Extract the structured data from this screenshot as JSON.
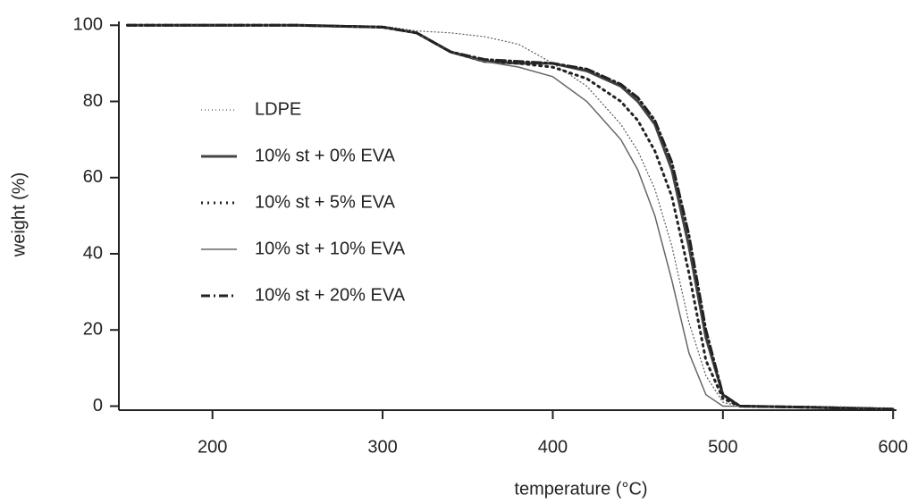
{
  "chart_data": {
    "type": "line",
    "x_label": "temperature (°C)",
    "y_label": "weight (%)",
    "x": [
      150,
      200,
      250,
      300,
      320,
      340,
      360,
      380,
      400,
      420,
      440,
      450,
      460,
      470,
      480,
      490,
      500,
      510,
      550,
      600
    ],
    "series": [
      {
        "name": "LDPE",
        "color": "#555555",
        "width": 1.2,
        "dash": "1,3",
        "values": [
          100,
          100,
          100,
          99.8,
          98.5,
          98,
          97,
          95,
          90,
          84,
          74,
          67,
          57,
          42,
          22,
          8,
          1,
          0,
          0,
          -0.5
        ]
      },
      {
        "name": "10% st + 0% EVA",
        "color": "#444444",
        "width": 3,
        "dash": "",
        "values": [
          100,
          100,
          100,
          99.5,
          98,
          93,
          90.5,
          90,
          90,
          88,
          84,
          80,
          74,
          62,
          42,
          18,
          3,
          0,
          -0.3,
          -0.8
        ]
      },
      {
        "name": "10% st + 5% EVA",
        "color": "#222222",
        "width": 3,
        "dash": "2,5",
        "values": [
          100,
          100,
          100,
          99.5,
          98,
          93,
          90.5,
          90,
          89,
          86,
          80,
          75,
          67,
          55,
          35,
          12,
          2,
          0,
          -0.3,
          -0.8
        ]
      },
      {
        "name": "10% st + 10% EVA",
        "color": "#666666",
        "width": 1.5,
        "dash": "",
        "values": [
          100,
          100,
          100,
          99.5,
          98,
          93,
          90.5,
          89,
          86.5,
          80,
          70,
          62,
          50,
          33,
          14,
          3,
          0,
          0,
          -0.3,
          -0.8
        ]
      },
      {
        "name": "10% st + 20% EVA",
        "color": "#222222",
        "width": 3,
        "dash": "10,4,2,4",
        "values": [
          100,
          100,
          100,
          99.5,
          98,
          93,
          91,
          90.5,
          90,
          88.5,
          84.5,
          81,
          75,
          64,
          45,
          20,
          3,
          0,
          -0.3,
          -0.8
        ]
      }
    ],
    "xlim": [
      145,
      602
    ],
    "ylim": [
      -2,
      101
    ],
    "xticks": [
      200,
      300,
      400,
      500,
      600
    ],
    "yticks": [
      0,
      20,
      40,
      60,
      80,
      100
    ]
  }
}
